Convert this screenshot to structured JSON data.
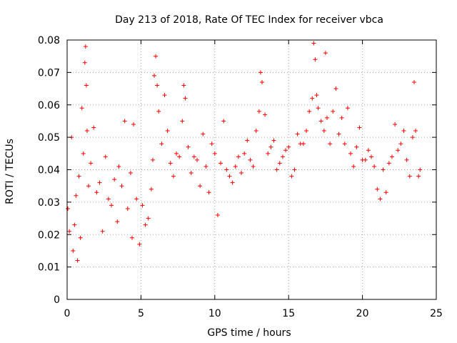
{
  "chart_data": {
    "type": "scatter",
    "title": "Day 213 of 2018, Rate Of TEC Index for receiver vbca",
    "xlabel": "GPS time / hours",
    "ylabel": "ROTI / TECUs",
    "xlim": [
      0,
      25
    ],
    "ylim": [
      0,
      0.08
    ],
    "x_ticks": [
      0,
      5,
      10,
      15,
      20,
      25
    ],
    "x_tick_labels": [
      "0",
      "5",
      "10",
      "15",
      "20",
      "25"
    ],
    "y_ticks": [
      0,
      0.01,
      0.02,
      0.03,
      0.04,
      0.05,
      0.06,
      0.07,
      0.08
    ],
    "y_tick_labels": [
      "0",
      "0.01",
      "0.02",
      "0.03",
      "0.04",
      "0.05",
      "0.06",
      "0.07",
      "0.08"
    ],
    "grid": true,
    "marker": "+",
    "series": [
      {
        "name": "ROTI",
        "color": "#ff0000",
        "x": [
          0.05,
          0.15,
          0.3,
          0.4,
          0.5,
          0.6,
          0.7,
          0.8,
          0.9,
          1.0,
          1.1,
          1.2,
          1.25,
          1.3,
          1.35,
          1.45,
          1.6,
          1.8,
          2.0,
          2.2,
          2.4,
          2.6,
          2.8,
          3.0,
          3.2,
          3.4,
          3.5,
          3.7,
          3.9,
          4.1,
          4.3,
          4.4,
          4.5,
          4.7,
          4.9,
          5.1,
          5.3,
          5.5,
          5.7,
          5.8,
          5.9,
          6.0,
          6.1,
          6.2,
          6.4,
          6.6,
          6.8,
          7.0,
          7.2,
          7.4,
          7.6,
          7.8,
          7.9,
          8.0,
          8.2,
          8.4,
          8.6,
          8.8,
          9.0,
          9.2,
          9.4,
          9.6,
          9.8,
          10.0,
          10.2,
          10.4,
          10.6,
          10.8,
          11.0,
          11.2,
          11.4,
          11.6,
          11.8,
          12.0,
          12.2,
          12.4,
          12.6,
          12.8,
          13.0,
          13.1,
          13.2,
          13.4,
          13.6,
          13.8,
          14.0,
          14.2,
          14.4,
          14.6,
          14.8,
          15.0,
          15.2,
          15.4,
          15.6,
          15.8,
          16.0,
          16.2,
          16.4,
          16.6,
          16.7,
          16.8,
          16.9,
          17.0,
          17.2,
          17.4,
          17.5,
          17.6,
          17.8,
          18.0,
          18.2,
          18.4,
          18.6,
          18.8,
          19.0,
          19.2,
          19.4,
          19.6,
          19.8,
          20.0,
          20.2,
          20.4,
          20.6,
          20.8,
          21.0,
          21.2,
          21.4,
          21.6,
          21.8,
          22.0,
          22.2,
          22.4,
          22.6,
          22.8,
          23.0,
          23.2,
          23.4,
          23.5,
          23.6,
          23.8,
          23.9
        ],
        "y": [
          0.028,
          0.021,
          0.05,
          0.015,
          0.023,
          0.032,
          0.012,
          0.038,
          0.019,
          0.059,
          0.045,
          0.073,
          0.078,
          0.066,
          0.052,
          0.035,
          0.042,
          0.053,
          0.033,
          0.036,
          0.021,
          0.044,
          0.031,
          0.029,
          0.037,
          0.024,
          0.041,
          0.035,
          0.055,
          0.028,
          0.039,
          0.019,
          0.054,
          0.031,
          0.017,
          0.029,
          0.023,
          0.025,
          0.034,
          0.043,
          0.069,
          0.075,
          0.066,
          0.058,
          0.048,
          0.063,
          0.052,
          0.042,
          0.038,
          0.045,
          0.044,
          0.055,
          0.066,
          0.062,
          0.047,
          0.039,
          0.044,
          0.043,
          0.035,
          0.051,
          0.041,
          0.033,
          0.048,
          0.045,
          0.026,
          0.042,
          0.055,
          0.04,
          0.038,
          0.036,
          0.041,
          0.044,
          0.039,
          0.045,
          0.049,
          0.043,
          0.041,
          0.052,
          0.058,
          0.07,
          0.067,
          0.057,
          0.045,
          0.047,
          0.049,
          0.04,
          0.042,
          0.044,
          0.046,
          0.047,
          0.038,
          0.04,
          0.051,
          0.048,
          0.048,
          0.052,
          0.058,
          0.062,
          0.079,
          0.074,
          0.063,
          0.059,
          0.055,
          0.052,
          0.076,
          0.056,
          0.048,
          0.058,
          0.065,
          0.051,
          0.056,
          0.048,
          0.059,
          0.045,
          0.041,
          0.047,
          0.053,
          0.043,
          0.043,
          0.046,
          0.044,
          0.041,
          0.034,
          0.031,
          0.04,
          0.033,
          0.042,
          0.044,
          0.054,
          0.046,
          0.048,
          0.052,
          0.043,
          0.038,
          0.05,
          0.067,
          0.052,
          0.038,
          0.04
        ]
      }
    ]
  }
}
